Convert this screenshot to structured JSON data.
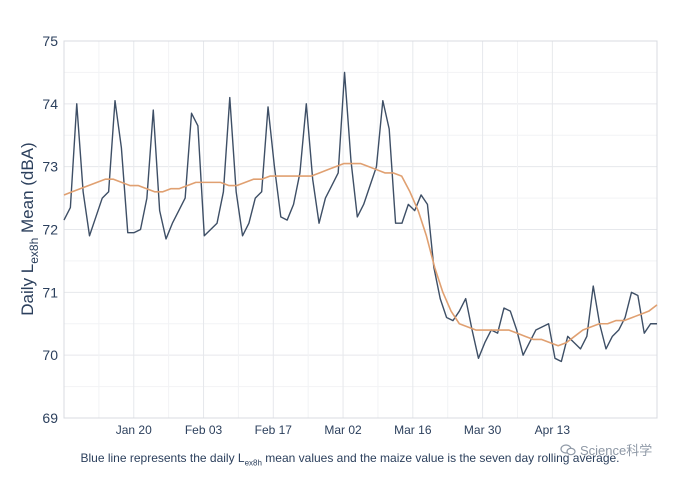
{
  "chart_data": {
    "type": "line",
    "ylabel_main": "Daily L",
    "ylabel_sub": "ex8h",
    "ylabel_rest": " Mean (dBA)",
    "ylim": [
      69,
      75
    ],
    "yticks": [
      69,
      70,
      71,
      72,
      73,
      74,
      75
    ],
    "x_start_day": 0,
    "x_end_day": 119,
    "x_tick_labels": [
      "Jan 20",
      "Feb 03",
      "Feb 17",
      "Mar 02",
      "Mar 16",
      "Mar 30",
      "Apr 13"
    ],
    "x_tick_days": [
      14,
      28,
      42,
      56,
      70,
      84,
      98
    ],
    "grid": true,
    "series": [
      {
        "name": "daily Lex8h mean",
        "color": "#3e4f66",
        "values": [
          72.15,
          72.35,
          74.0,
          72.6,
          71.9,
          72.2,
          72.5,
          72.6,
          74.05,
          73.3,
          71.95,
          71.95,
          72.0,
          72.5,
          73.9,
          72.3,
          71.85,
          72.1,
          72.3,
          72.5,
          73.85,
          73.65,
          71.9,
          72.0,
          72.1,
          72.6,
          74.1,
          72.6,
          71.9,
          72.1,
          72.5,
          72.6,
          73.95,
          73.0,
          72.2,
          72.15,
          72.4,
          72.9,
          74.0,
          72.8,
          72.1,
          72.5,
          72.7,
          72.9,
          74.5,
          73.1,
          72.2,
          72.4,
          72.7,
          73.0,
          74.05,
          73.6,
          72.1,
          72.1,
          72.4,
          72.3,
          72.55,
          72.4,
          71.4,
          70.9,
          70.6,
          70.55,
          70.7,
          70.9,
          70.4,
          69.95,
          70.2,
          70.4,
          70.35,
          70.75,
          70.7,
          70.4,
          70.0,
          70.2,
          70.4,
          70.45,
          70.5,
          69.95,
          69.9,
          70.3,
          70.2,
          70.1,
          70.3,
          71.1,
          70.5,
          70.1,
          70.3,
          70.4,
          70.6,
          71.0,
          70.95,
          70.35,
          70.5,
          70.5
        ]
      },
      {
        "name": "seven day rolling average",
        "color": "#e0a071",
        "values": [
          72.55,
          72.6,
          72.65,
          72.7,
          72.75,
          72.8,
          72.8,
          72.75,
          72.7,
          72.7,
          72.65,
          72.6,
          72.6,
          72.65,
          72.65,
          72.7,
          72.75,
          72.75,
          72.75,
          72.75,
          72.7,
          72.7,
          72.75,
          72.8,
          72.8,
          72.85,
          72.85,
          72.85,
          72.85,
          72.85,
          72.85,
          72.9,
          72.95,
          73.0,
          73.05,
          73.05,
          73.05,
          73.0,
          72.95,
          72.9,
          72.9,
          72.85,
          72.6,
          72.3,
          71.9,
          71.4,
          71.0,
          70.7,
          70.5,
          70.45,
          70.4,
          70.4,
          70.4,
          70.4,
          70.4,
          70.35,
          70.3,
          70.25,
          70.25,
          70.2,
          70.15,
          70.2,
          70.3,
          70.4,
          70.45,
          70.5,
          70.5,
          70.55,
          70.55,
          70.6,
          70.65,
          70.7,
          70.8
        ]
      }
    ],
    "series_day_offsets": [
      0,
      0
    ]
  },
  "caption": {
    "before": "Blue line represents the daily L",
    "sub": "ex8h",
    "after": " mean values and the maize value is the seven day rolling average."
  },
  "watermark": "Science科学"
}
